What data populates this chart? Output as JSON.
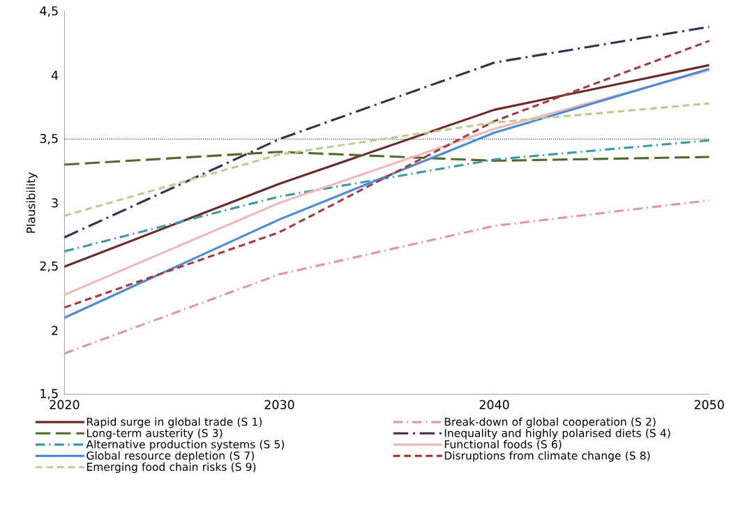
{
  "chart_data": {
    "type": "line",
    "ylabel": "Plausibility",
    "x": [
      2020,
      2030,
      2040,
      2050
    ],
    "xlim": [
      2020,
      2050
    ],
    "xticks": [
      2020,
      2030,
      2040,
      2050
    ],
    "ylim": [
      1.5,
      4.5
    ],
    "yticks": [
      {
        "value": 1.5,
        "label": "1,5"
      },
      2,
      {
        "value": 2.5,
        "label": "2,5"
      },
      3,
      {
        "value": 3.5,
        "label": "3,5"
      },
      4,
      {
        "value": 4.5,
        "label": "4,5"
      }
    ],
    "legend": "bottom",
    "grid": false,
    "marker": "none",
    "ref_lines": [
      {
        "axis": "y",
        "value": 3.5,
        "color": "#000000",
        "line_style": "dotted"
      }
    ],
    "series": [
      {
        "name": "Rapid surge in global trade (S 1)",
        "color": "#6b2a2a",
        "line_style": "solid",
        "values": [
          2.5,
          3.15,
          3.73,
          4.08
        ]
      },
      {
        "name": "Break-down of global cooperation (S 2)",
        "color": "#e09a9a",
        "line_style": "dashdot",
        "values": [
          1.82,
          2.44,
          2.82,
          3.02
        ]
      },
      {
        "name": "Long-term austerity (S 3)",
        "color": "#4e6b2a",
        "line_style": "longdash",
        "values": [
          3.3,
          3.4,
          3.33,
          3.36
        ]
      },
      {
        "name": "Inequality and highly polarised diets (S 4)",
        "color": "#3d2a4e",
        "line_style": "longdashdot",
        "values": [
          2.73,
          3.5,
          4.1,
          4.38
        ]
      },
      {
        "name": "Alternative production systems (S 5)",
        "color": "#3a9aa8",
        "line_style": "dashdot",
        "values": [
          2.62,
          3.05,
          3.34,
          3.49
        ]
      },
      {
        "name": "Functional foods (S 6)",
        "color": "#f0b8b8",
        "line_style": "solid",
        "values": [
          2.28,
          3.0,
          3.58,
          4.04
        ]
      },
      {
        "name": "Global resource depletion (S 7)",
        "color": "#4a8ad8",
        "line_style": "solid",
        "values": [
          2.1,
          2.87,
          3.55,
          4.05
        ]
      },
      {
        "name": "Disruptions from climate change (S 8)",
        "color": "#a83a3a",
        "line_style": "dashed",
        "values": [
          2.18,
          2.77,
          3.64,
          4.27
        ]
      },
      {
        "name": "Emerging food chain risks (S 9)",
        "color": "#b5d08a",
        "line_style": "dashed",
        "values": [
          2.9,
          3.38,
          3.63,
          3.78
        ]
      }
    ]
  }
}
